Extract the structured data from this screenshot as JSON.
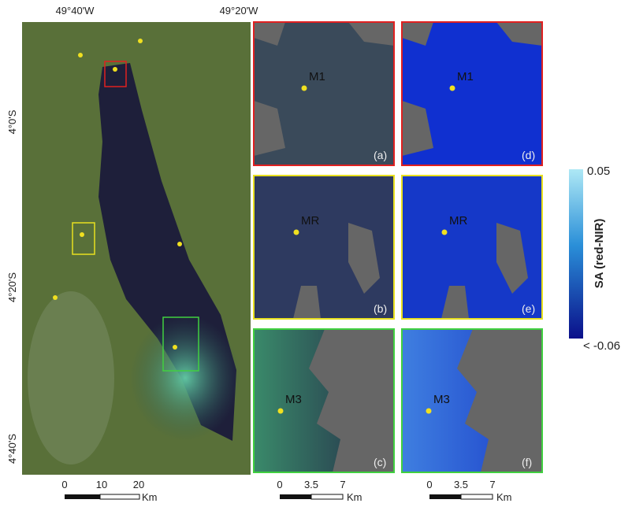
{
  "map": {
    "lon_labels": [
      "49°40'W",
      "49°20'W"
    ],
    "lat_labels": [
      "4°0'S",
      "4°20'S",
      "4°40'S"
    ],
    "scale_bar": {
      "ticks": [
        "0",
        "10",
        "20"
      ],
      "unit": "Km"
    }
  },
  "panels": [
    {
      "marker": "M1",
      "label": "(a)"
    },
    {
      "marker": "MR",
      "label": "(b)"
    },
    {
      "marker": "M3",
      "label": "(c)"
    },
    {
      "marker": "M1",
      "label": "(d)"
    },
    {
      "marker": "MR",
      "label": "(e)"
    },
    {
      "marker": "M3",
      "label": "(f)"
    }
  ],
  "panel_scale_bars": [
    {
      "ticks": [
        "0",
        "3.5",
        "7"
      ],
      "unit": "Km"
    },
    {
      "ticks": [
        "0",
        "3.5",
        "7"
      ],
      "unit": "Km"
    }
  ],
  "colorbar": {
    "max_label": "0.05",
    "title": "SA (red-NIR)",
    "min_label": "< -0.06"
  }
}
